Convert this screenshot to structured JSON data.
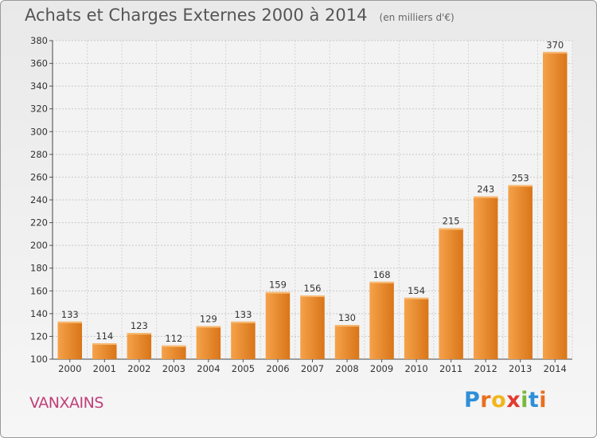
{
  "chart_data": {
    "type": "bar",
    "title": "Achats et Charges Externes 2000 à 2014",
    "subtitle": "(en milliers d'€)",
    "categories": [
      "2000",
      "2001",
      "2002",
      "2003",
      "2004",
      "2005",
      "2006",
      "2007",
      "2008",
      "2009",
      "2010",
      "2011",
      "2012",
      "2013",
      "2014"
    ],
    "values": [
      133,
      114,
      123,
      112,
      129,
      133,
      159,
      156,
      130,
      168,
      154,
      215,
      243,
      253,
      370
    ],
    "ylim": [
      100,
      380
    ],
    "yticks": [
      100,
      120,
      140,
      160,
      180,
      200,
      220,
      240,
      260,
      280,
      300,
      320,
      340,
      360,
      380
    ],
    "grid": true,
    "colors": {
      "bar_light": "#f5a24a",
      "bar_dark": "#d97518"
    }
  },
  "footer": {
    "commune": "VANXAINS",
    "brand_letters": [
      "P",
      "r",
      "o",
      "x",
      "i",
      "t",
      "i"
    ],
    "brand_colors": [
      "#2e8fd8",
      "#e86f1f",
      "#f2b51c",
      "#e23a2d",
      "#7ab83d",
      "#2e8fd8",
      "#e86f1f"
    ]
  }
}
